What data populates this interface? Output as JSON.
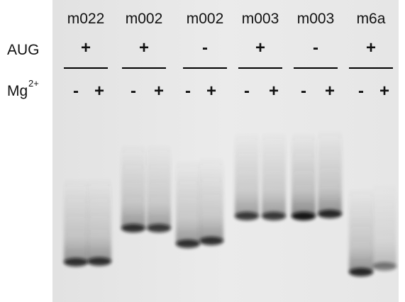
{
  "row_labels": {
    "aug": "AUG",
    "mg": "Mg",
    "mg_superscript": "2+"
  },
  "groups": [
    {
      "construct": "m022",
      "aug": "+",
      "mg": [
        "-",
        "+"
      ]
    },
    {
      "construct": "m002",
      "aug": "+",
      "mg": [
        "-",
        "+"
      ]
    },
    {
      "construct": "m002",
      "aug": "-",
      "mg": [
        "-",
        "+"
      ]
    },
    {
      "construct": "m003",
      "aug": "+",
      "mg": [
        "-",
        "+"
      ]
    },
    {
      "construct": "m003",
      "aug": "-",
      "mg": [
        "-",
        "+"
      ]
    },
    {
      "construct": "m6a",
      "aug": "+",
      "mg": [
        "-",
        "+"
      ]
    }
  ]
}
